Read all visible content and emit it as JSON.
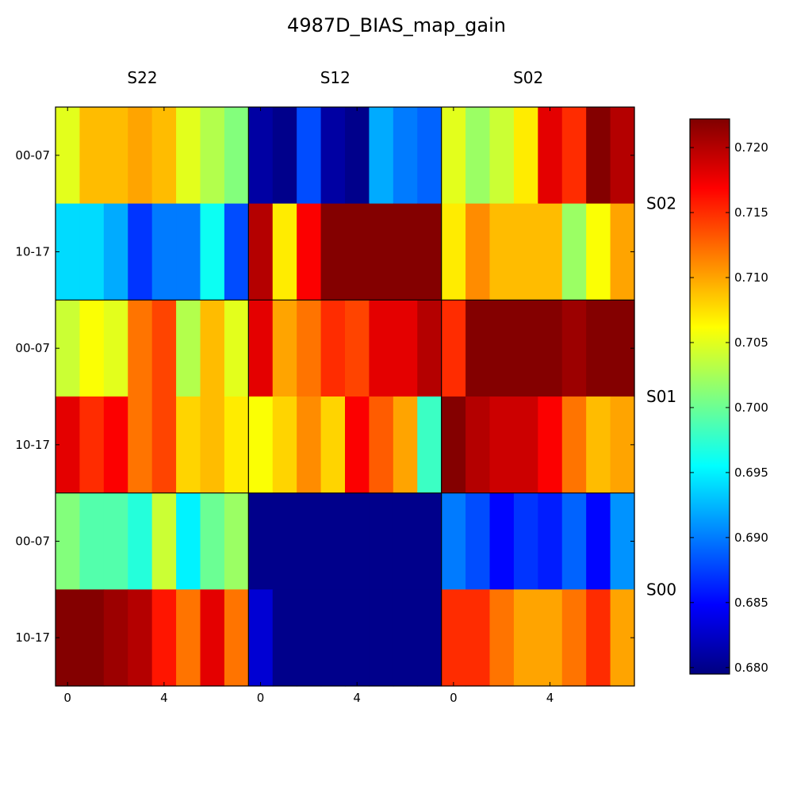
{
  "chart_data": {
    "type": "heatmap",
    "title": "4987D_BIAS_map_gain",
    "column_groups": [
      "S22",
      "S12",
      "S02"
    ],
    "row_groups": [
      "S02",
      "S01",
      "S00"
    ],
    "row_labels": [
      "00-07",
      "10-17"
    ],
    "x_tick_labels": [
      "0",
      "4"
    ],
    "x_ticks": [
      0,
      4
    ],
    "cells_per_subrow": 8,
    "colormap": "jet",
    "vmin": 0.6795,
    "vmax": 0.7222,
    "colorbar_ticks": [
      "0.680",
      "0.685",
      "0.690",
      "0.695",
      "0.700",
      "0.705",
      "0.710",
      "0.715",
      "0.720"
    ],
    "colorbar_values": [
      0.68,
      0.685,
      0.69,
      0.695,
      0.7,
      0.705,
      0.71,
      0.715,
      0.72
    ],
    "blocks": [
      [
        [
          [
            0.705,
            0.709,
            0.709,
            0.71,
            0.709,
            0.705,
            0.703,
            0.701
          ],
          [
            0.694,
            0.694,
            0.692,
            0.687,
            0.69,
            0.69,
            0.696,
            0.688
          ]
        ],
        [
          [
            0.681,
            0.68,
            0.688,
            0.681,
            0.68,
            0.692,
            0.69,
            0.689
          ],
          [
            0.72,
            0.707,
            0.717,
            0.722,
            0.722,
            0.722,
            0.722,
            0.722
          ]
        ],
        [
          [
            0.705,
            0.702,
            0.704,
            0.707,
            0.718,
            0.715,
            0.722,
            0.72
          ],
          [
            0.707,
            0.711,
            0.709,
            0.709,
            0.709,
            0.702,
            0.706,
            0.71
          ]
        ]
      ],
      [
        [
          [
            0.704,
            0.706,
            0.705,
            0.712,
            0.714,
            0.703,
            0.709,
            0.705
          ],
          [
            0.718,
            0.715,
            0.717,
            0.712,
            0.714,
            0.708,
            0.709,
            0.707
          ]
        ],
        [
          [
            0.718,
            0.71,
            0.712,
            0.715,
            0.714,
            0.718,
            0.718,
            0.72
          ],
          [
            0.706,
            0.708,
            0.711,
            0.708,
            0.717,
            0.713,
            0.71,
            0.698
          ]
        ],
        [
          [
            0.715,
            0.722,
            0.722,
            0.722,
            0.722,
            0.721,
            0.722,
            0.722
          ],
          [
            0.722,
            0.72,
            0.719,
            0.719,
            0.717,
            0.712,
            0.709,
            0.71
          ]
        ]
      ],
      [
        [
          [
            0.701,
            0.699,
            0.699,
            0.697,
            0.704,
            0.695,
            0.7,
            0.702
          ],
          [
            0.722,
            0.722,
            0.721,
            0.72,
            0.716,
            0.712,
            0.718,
            0.712
          ]
        ],
        [
          [
            0.68,
            0.68,
            0.68,
            0.68,
            0.68,
            0.68,
            0.68,
            0.68
          ],
          [
            0.683,
            0.68,
            0.68,
            0.68,
            0.68,
            0.68,
            0.68,
            0.68
          ]
        ],
        [
          [
            0.69,
            0.688,
            0.685,
            0.687,
            0.686,
            0.689,
            0.685,
            0.691
          ],
          [
            0.715,
            0.715,
            0.712,
            0.71,
            0.71,
            0.712,
            0.715,
            0.71
          ]
        ]
      ]
    ]
  }
}
